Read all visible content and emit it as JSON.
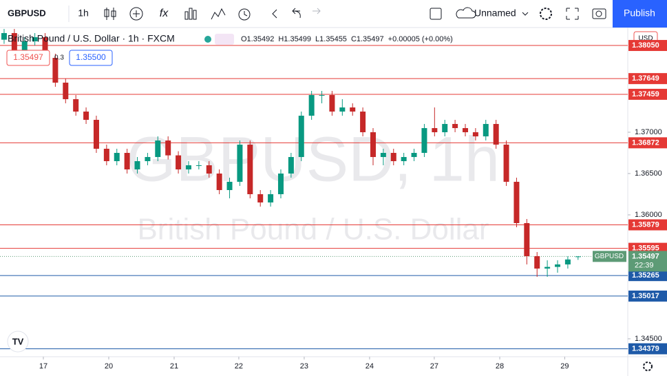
{
  "toolbar": {
    "symbol": "GBPUSD",
    "interval": "1h",
    "layout_name": "Unnamed",
    "publish": "Publish"
  },
  "chart_data": {
    "type": "candlestick",
    "title": "British Pound / U.S. Dollar · 1h · FXCM",
    "watermark": "GBPUSD, 1h",
    "watermark_subtitle": "British Pound / U.S. Dollar",
    "ohlc_legend": [
      "O1.35492",
      "H1.35499",
      "L1.35455",
      "C1.35497",
      "+0.00005 (+0.00%)"
    ],
    "sell_price": "1.35497",
    "spread": "0.3",
    "buy_price": "1.35500",
    "currency": "USD",
    "up_color": "#089981",
    "down_color": "#c62828",
    "open": [
      1.3812,
      1.382,
      1.3795,
      1.381,
      1.3815,
      1.379,
      1.376,
      1.374,
      1.3725,
      1.3715,
      1.368,
      1.3665,
      1.3675,
      1.3655,
      1.3665,
      1.367,
      1.369,
      1.3672,
      1.3655,
      1.366,
      1.366,
      1.365,
      1.363,
      1.364,
      1.3685,
      1.3625,
      1.3615,
      1.3625,
      1.365,
      1.367,
      1.372,
      1.3745,
      1.3745,
      1.3725,
      1.373,
      1.3725,
      1.37,
      1.367,
      1.3675,
      1.3665,
      1.367,
      1.3675,
      1.3705,
      1.37,
      1.371,
      1.3705,
      1.37,
      1.3695,
      1.371,
      1.3685,
      1.364,
      1.359,
      1.355,
      1.3535,
      1.3537,
      1.354,
      1.35492
    ],
    "high": [
      1.3825,
      1.3825,
      1.3815,
      1.382,
      1.382,
      1.3795,
      1.3765,
      1.3745,
      1.373,
      1.372,
      1.3685,
      1.368,
      1.368,
      1.367,
      1.3675,
      1.3695,
      1.3695,
      1.3677,
      1.3665,
      1.3665,
      1.3665,
      1.3655,
      1.3645,
      1.369,
      1.369,
      1.363,
      1.363,
      1.3655,
      1.3675,
      1.3725,
      1.375,
      1.375,
      1.375,
      1.374,
      1.3735,
      1.373,
      1.3705,
      1.368,
      1.368,
      1.3675,
      1.368,
      1.371,
      1.373,
      1.3715,
      1.3715,
      1.371,
      1.3705,
      1.3715,
      1.3715,
      1.369,
      1.3645,
      1.3595,
      1.3555,
      1.3545,
      1.3545,
      1.355,
      1.35499
    ],
    "low": [
      1.3807,
      1.379,
      1.379,
      1.3805,
      1.3785,
      1.3755,
      1.3735,
      1.372,
      1.371,
      1.3675,
      1.366,
      1.366,
      1.365,
      1.365,
      1.366,
      1.3665,
      1.3667,
      1.365,
      1.365,
      1.3655,
      1.3645,
      1.3625,
      1.362,
      1.3635,
      1.362,
      1.361,
      1.361,
      1.362,
      1.3645,
      1.3665,
      1.3715,
      1.3735,
      1.372,
      1.372,
      1.372,
      1.3695,
      1.366,
      1.366,
      1.366,
      1.366,
      1.3665,
      1.367,
      1.3695,
      1.3695,
      1.37,
      1.3695,
      1.369,
      1.369,
      1.368,
      1.3635,
      1.3585,
      1.354,
      1.3525,
      1.3525,
      1.353,
      1.3535,
      1.35455
    ],
    "close": [
      1.382,
      1.3795,
      1.381,
      1.3815,
      1.379,
      1.376,
      1.374,
      1.3725,
      1.3715,
      1.368,
      1.3665,
      1.3675,
      1.3655,
      1.3665,
      1.367,
      1.369,
      1.3672,
      1.3655,
      1.366,
      1.366,
      1.365,
      1.363,
      1.364,
      1.3685,
      1.3625,
      1.3615,
      1.3625,
      1.365,
      1.367,
      1.372,
      1.3745,
      1.3745,
      1.3725,
      1.373,
      1.3725,
      1.37,
      1.367,
      1.3675,
      1.3665,
      1.367,
      1.3675,
      1.3705,
      1.37,
      1.371,
      1.3705,
      1.37,
      1.3695,
      1.371,
      1.3685,
      1.364,
      1.359,
      1.355,
      1.3535,
      1.3537,
      1.354,
      1.3546,
      1.35497
    ],
    "xlim": [
      -0.4,
      60.85
    ],
    "xticks": [
      {
        "value": 3.83,
        "label": "17"
      },
      {
        "value": 10.21,
        "label": "20"
      },
      {
        "value": 16.59,
        "label": "21"
      },
      {
        "value": 22.9,
        "label": "22"
      },
      {
        "value": 29.28,
        "label": "23"
      },
      {
        "value": 35.66,
        "label": "24"
      },
      {
        "value": 41.97,
        "label": "27"
      },
      {
        "value": 48.36,
        "label": "28"
      },
      {
        "value": 54.7,
        "label": "29"
      }
    ],
    "ylim": [
      1.34283,
      1.38267
    ],
    "yticks": [
      {
        "value": 1.37,
        "label": "1.37000"
      },
      {
        "value": 1.365,
        "label": "1.36500"
      },
      {
        "value": 1.36,
        "label": "1.36000"
      },
      {
        "value": 1.345,
        "label": "1.34500"
      }
    ],
    "levels": [
      {
        "price": 1.3805,
        "label": "1.38050",
        "color": "#e53935"
      },
      {
        "price": 1.37649,
        "color": "#e53935"
      },
      {
        "price": 1.37459,
        "color": "#e53935"
      },
      {
        "price": 1.36872,
        "color": "#e53935"
      },
      {
        "price": 1.35879,
        "color": "#e53935"
      },
      {
        "price": 1.35595,
        "color": "#e53935"
      },
      {
        "price": 1.35265,
        "color": "#1e5aa8"
      },
      {
        "price": 1.35017,
        "color": "#1e5aa8"
      },
      {
        "price": 1.34379,
        "color": "#1e5aa8"
      }
    ],
    "last_price": {
      "price": 1.35497,
      "symbol": "GBPUSD",
      "countdown": "22:39",
      "color": "#5d9b76"
    }
  }
}
